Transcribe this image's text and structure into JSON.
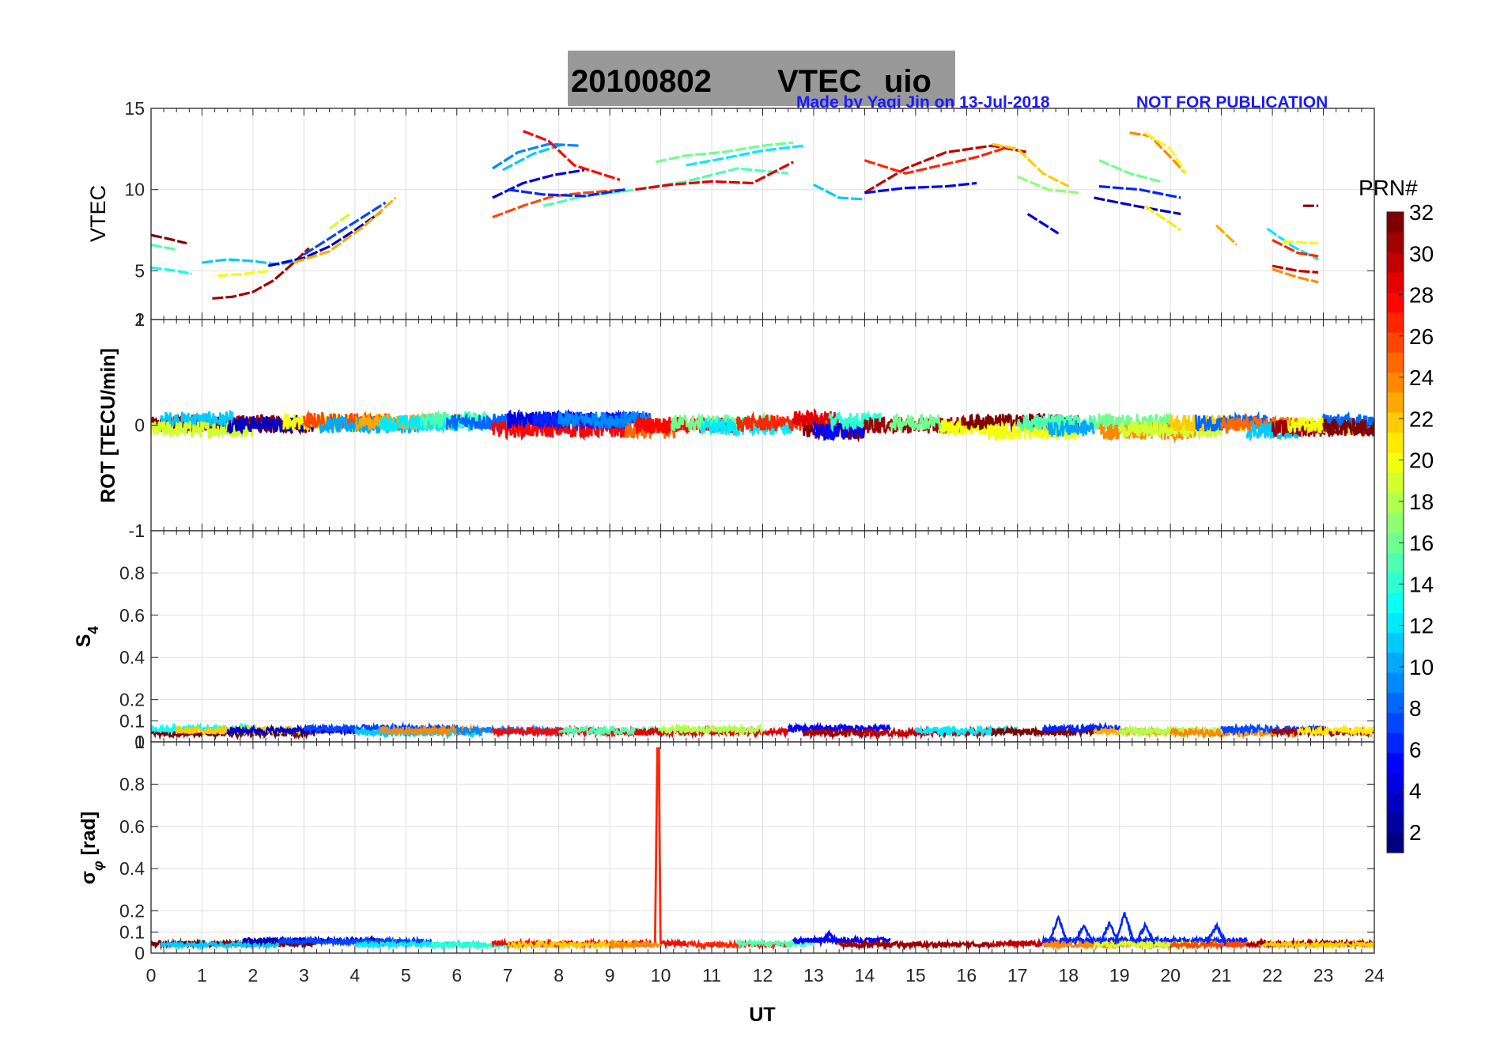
{
  "title": {
    "date": "20100802",
    "main": "VTEC",
    "station": "uio",
    "made_by": "Made by Yaqi Jin on 13-Jul-2018",
    "not_for_pub": "NOT FOR PUBLICATION",
    "bg_color": "#999999",
    "made_by_color": "#1a1aff"
  },
  "xaxis": {
    "label": "UT",
    "ticks": [
      "0",
      "1",
      "2",
      "3",
      "4",
      "5",
      "6",
      "7",
      "8",
      "9",
      "10",
      "11",
      "12",
      "13",
      "14",
      "15",
      "16",
      "17",
      "18",
      "19",
      "20",
      "21",
      "22",
      "23",
      "24"
    ]
  },
  "colorbar": {
    "title": "PRN#",
    "ticks": [
      "2",
      "4",
      "6",
      "8",
      "10",
      "12",
      "14",
      "16",
      "18",
      "20",
      "22",
      "24",
      "26",
      "28",
      "30",
      "32"
    ],
    "range": [
      1,
      32
    ],
    "colormap": "jet"
  },
  "chart_data": [
    {
      "type": "line",
      "title": "VTEC",
      "xlabel": "UT",
      "ylabel": "VTEC",
      "xlim": [
        0,
        24
      ],
      "ylim": [
        2,
        15
      ],
      "yticks": [
        "2",
        "5",
        "10",
        "15"
      ],
      "series": [
        {
          "name": "PRN 32",
          "prn": 32,
          "x": [
            0,
            0.3,
            0.7
          ],
          "y": [
            7.2,
            7.0,
            6.7
          ]
        },
        {
          "name": "PRN 31",
          "prn": 31,
          "x": [
            1.2,
            1.6,
            2.0,
            2.4,
            2.8,
            3.1
          ],
          "y": [
            3.3,
            3.4,
            3.7,
            4.4,
            5.5,
            6.4
          ]
        },
        {
          "name": "PRN 11",
          "prn": 11,
          "x": [
            1.0,
            1.5,
            2.0,
            2.5,
            3.0
          ],
          "y": [
            5.5,
            5.7,
            5.6,
            5.4,
            5.7
          ]
        },
        {
          "name": "PRN 3",
          "prn": 3,
          "x": [
            2.3,
            3.0,
            3.5,
            4.0,
            4.5
          ],
          "y": [
            5.3,
            5.8,
            6.5,
            7.5,
            8.6
          ]
        },
        {
          "name": "PRN 7",
          "prn": 7,
          "x": [
            3.0,
            3.5,
            4.0,
            4.6
          ],
          "y": [
            6.0,
            7.0,
            8.0,
            9.2
          ]
        },
        {
          "name": "PRN 23",
          "prn": 23,
          "x": [
            2.8,
            3.5,
            4.2,
            4.8
          ],
          "y": [
            5.5,
            6.2,
            7.8,
            9.5
          ]
        },
        {
          "name": "PRN 19",
          "prn": 19,
          "x": [
            3.5,
            3.9
          ],
          "y": [
            7.6,
            8.5
          ]
        },
        {
          "name": "PRN 13",
          "prn": 13,
          "x": [
            0,
            0.5,
            0.8
          ],
          "y": [
            5.2,
            5.0,
            4.8
          ]
        },
        {
          "name": "PRN 15",
          "prn": 15,
          "x": [
            0,
            0.5
          ],
          "y": [
            6.6,
            6.3
          ]
        },
        {
          "name": "PRN 20",
          "prn": 20,
          "x": [
            1.3,
            1.8,
            2.3
          ],
          "y": [
            4.7,
            4.8,
            5.0
          ]
        },
        {
          "name": "PRN 11b",
          "prn": 11,
          "x": [
            6.9,
            7.5,
            8.1
          ],
          "y": [
            11.2,
            12.2,
            12.8
          ]
        },
        {
          "name": "PRN 9",
          "prn": 9,
          "x": [
            6.7,
            7.2,
            7.8,
            8.4
          ],
          "y": [
            11.3,
            12.3,
            12.8,
            12.7
          ]
        },
        {
          "name": "PRN 28",
          "prn": 28,
          "x": [
            7.3,
            7.8,
            8.3,
            8.8,
            9.2
          ],
          "y": [
            13.6,
            13.0,
            11.5,
            11.0,
            10.6
          ]
        },
        {
          "name": "PRN 4",
          "prn": 4,
          "x": [
            6.7,
            7.3,
            7.9,
            8.5
          ],
          "y": [
            9.5,
            10.4,
            10.9,
            11.2
          ]
        },
        {
          "name": "PRN 26",
          "prn": 26,
          "x": [
            6.7,
            7.3,
            7.9,
            8.5,
            9.3
          ],
          "y": [
            8.3,
            9.0,
            9.6,
            9.8,
            10.0
          ]
        },
        {
          "name": "PRN 15b",
          "prn": 15,
          "x": [
            7.7,
            8.5,
            9.3,
            10.5,
            11.5,
            12.5
          ],
          "y": [
            9.0,
            9.6,
            9.9,
            10.5,
            11.3,
            11.0
          ]
        },
        {
          "name": "PRN 6",
          "prn": 6,
          "x": [
            7.0,
            7.7,
            8.5,
            9.3
          ],
          "y": [
            10.0,
            9.7,
            9.6,
            10.0
          ]
        },
        {
          "name": "PRN 16",
          "prn": 16,
          "x": [
            9.9,
            10.5,
            11.2,
            12.0,
            12.6
          ],
          "y": [
            11.7,
            12.1,
            12.3,
            12.7,
            12.9
          ]
        },
        {
          "name": "PRN 12",
          "prn": 12,
          "x": [
            10.5,
            11.2,
            12.0,
            12.8
          ],
          "y": [
            11.5,
            11.9,
            12.4,
            12.7
          ]
        },
        {
          "name": "PRN 29",
          "prn": 29,
          "x": [
            9.5,
            10.2,
            11.0,
            11.8,
            12.6
          ],
          "y": [
            10.0,
            10.3,
            10.5,
            10.4,
            11.7
          ]
        },
        {
          "name": "PRN 30",
          "prn": 30,
          "x": [
            14.0,
            14.8,
            15.6,
            16.5,
            17.2
          ],
          "y": [
            9.8,
            11.3,
            12.3,
            12.7,
            12.3
          ]
        },
        {
          "name": "PRN 27",
          "prn": 27,
          "x": [
            14.0,
            14.8,
            15.5,
            16.2,
            16.8
          ],
          "y": [
            11.8,
            11.0,
            11.5,
            12.0,
            12.6
          ]
        },
        {
          "name": "PRN 5",
          "prn": 5,
          "x": [
            14.0,
            14.8,
            15.6,
            16.2
          ],
          "y": [
            9.8,
            10.1,
            10.2,
            10.4
          ]
        },
        {
          "name": "PRN 11c",
          "prn": 11,
          "x": [
            13.0,
            13.5,
            14.0
          ],
          "y": [
            10.3,
            9.5,
            9.4
          ]
        },
        {
          "name": "PRN 22",
          "prn": 22,
          "x": [
            16.5,
            17.0,
            17.5,
            18.0
          ],
          "y": [
            12.8,
            12.5,
            11.0,
            10.2
          ]
        },
        {
          "name": "PRN 17",
          "prn": 17,
          "x": [
            17.0,
            17.6,
            18.2
          ],
          "y": [
            10.8,
            10.0,
            9.8
          ]
        },
        {
          "name": "PRN 4b",
          "prn": 4,
          "x": [
            17.2,
            17.8
          ],
          "y": [
            8.5,
            7.3
          ]
        },
        {
          "name": "PRN 24",
          "prn": 24,
          "x": [
            19.2,
            19.6,
            20.0,
            20.3
          ],
          "y": [
            13.5,
            13.3,
            12.0,
            11.0
          ]
        },
        {
          "name": "PRN 20b",
          "prn": 20,
          "x": [
            19.5,
            20.0,
            20.3
          ],
          "y": [
            13.5,
            12.5,
            11.0
          ]
        },
        {
          "name": "PRN 16b",
          "prn": 16,
          "x": [
            18.6,
            19.2,
            19.8
          ],
          "y": [
            11.8,
            11.0,
            10.5
          ]
        },
        {
          "name": "PRN 6b",
          "prn": 6,
          "x": [
            18.6,
            19.4,
            20.2
          ],
          "y": [
            10.2,
            10.0,
            9.5
          ]
        },
        {
          "name": "PRN 3b",
          "prn": 3,
          "x": [
            18.5,
            19.3,
            20.2
          ],
          "y": [
            9.5,
            9.0,
            8.5
          ]
        },
        {
          "name": "PRN 21",
          "prn": 21,
          "x": [
            19.5,
            20.2
          ],
          "y": [
            9.0,
            7.5
          ]
        },
        {
          "name": "PRN 23b",
          "prn": 23,
          "x": [
            20.9,
            21.3
          ],
          "y": [
            7.8,
            6.6
          ]
        },
        {
          "name": "PRN 12b",
          "prn": 12,
          "x": [
            21.9,
            22.4,
            22.9
          ],
          "y": [
            7.6,
            6.5,
            5.7
          ]
        },
        {
          "name": "PRN 27b",
          "prn": 27,
          "x": [
            22.0,
            22.5,
            22.9
          ],
          "y": [
            6.9,
            6.1,
            5.9
          ]
        },
        {
          "name": "PRN 24b",
          "prn": 24,
          "x": [
            22.0,
            22.5,
            22.9
          ],
          "y": [
            5.1,
            4.6,
            4.3
          ]
        },
        {
          "name": "PRN 30b",
          "prn": 30,
          "x": [
            22.0,
            22.5,
            22.9
          ],
          "y": [
            5.3,
            5.0,
            4.9
          ]
        },
        {
          "name": "PRN 20c",
          "prn": 20,
          "x": [
            22.2,
            22.9
          ],
          "y": [
            6.8,
            6.7
          ]
        },
        {
          "name": "PRN 32b",
          "prn": 32,
          "x": [
            22.6,
            22.9
          ],
          "y": [
            9.0,
            9.0
          ]
        }
      ]
    },
    {
      "type": "line",
      "title": "ROT",
      "xlabel": "UT",
      "ylabel": "ROT [TECU/min]",
      "xlim": [
        0,
        24
      ],
      "ylim": [
        -1,
        1
      ],
      "yticks": [
        "-1",
        "0",
        "1"
      ],
      "series_summary": "Noisy ROT traces for all PRNs centered near 0, amplitude about ±0.15 TECU/min across 0–24 UT"
    },
    {
      "type": "line",
      "title": "S4",
      "xlabel": "UT",
      "ylabel": "S4",
      "xlim": [
        0,
        24
      ],
      "ylim": [
        0,
        1
      ],
      "yticks": [
        "0",
        "0.1",
        "0.2",
        "0.4",
        "0.6",
        "0.8",
        "1"
      ],
      "series_summary": "S4 values for all PRNs between about 0.03 and 0.1 throughout the day"
    },
    {
      "type": "line",
      "title": "sigma_phi",
      "xlabel": "UT",
      "ylabel": "σφ [rad]",
      "xlim": [
        0,
        24
      ],
      "ylim": [
        0,
        1
      ],
      "yticks": [
        "0",
        "0.1",
        "0.2",
        "0.4",
        "0.6",
        "0.8",
        "1"
      ],
      "background_level": 0.05,
      "spikes": [
        {
          "x": 9.95,
          "y": 0.97,
          "prn": 27
        }
      ],
      "bumps": [
        {
          "x": 17.8,
          "y": 0.17,
          "prn": 6
        },
        {
          "x": 18.3,
          "y": 0.13,
          "prn": 6
        },
        {
          "x": 18.8,
          "y": 0.14,
          "prn": 6
        },
        {
          "x": 19.1,
          "y": 0.19,
          "prn": 6
        },
        {
          "x": 19.5,
          "y": 0.13,
          "prn": 6
        },
        {
          "x": 20.9,
          "y": 0.13,
          "prn": 6
        },
        {
          "x": 13.3,
          "y": 0.09,
          "prn": 5
        }
      ]
    }
  ]
}
